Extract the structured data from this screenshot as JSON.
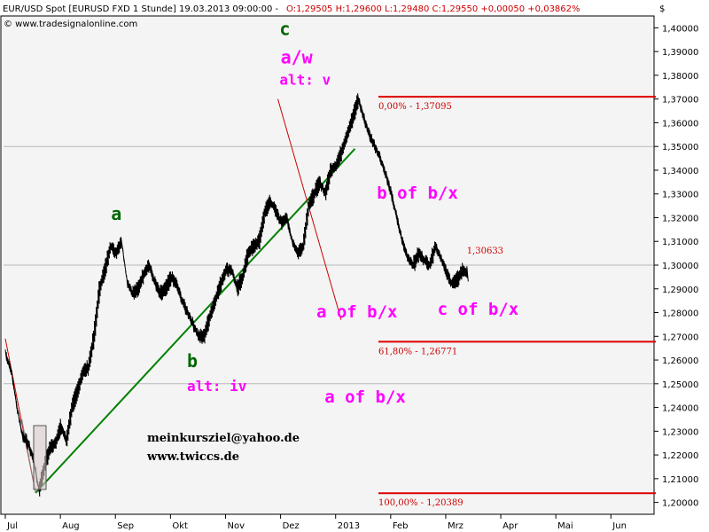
{
  "header": {
    "title": "EUR/USD Spot [EURUSD FXD  1 Stunde] 19.03.2013 09:00:00 -",
    "ohlc": "O:1,29505 H:1,29600 L:1,29480 C:1,29550 +0,00050 +0,03862%",
    "source": "© www.tradesignalonline.com",
    "currency": "$"
  },
  "chart_data": {
    "type": "line",
    "x_tick_labels": [
      "Jul",
      "Aug",
      "Sep",
      "Okt",
      "Nov",
      "Dez",
      "2013",
      "Feb",
      "Mrz",
      "Apr",
      "Mai",
      "Jun"
    ],
    "y_tick_labels": [
      "1,20000",
      "1,21000",
      "1,22000",
      "1,23000",
      "1,24000",
      "1,25000",
      "1,26000",
      "1,27000",
      "1,28000",
      "1,29000",
      "1,30000",
      "1,31000",
      "1,32000",
      "1,33000",
      "1,34000",
      "1,35000",
      "1,36000",
      "1,37000",
      "1,38000",
      "1,39000",
      "1,40000"
    ],
    "ylim": [
      1.195,
      1.405
    ],
    "y_ticks": [
      1.2,
      1.21,
      1.22,
      1.23,
      1.24,
      1.25,
      1.26,
      1.27,
      1.28,
      1.29,
      1.3,
      1.31,
      1.32,
      1.33,
      1.34,
      1.35,
      1.36,
      1.37,
      1.38,
      1.39,
      1.4
    ],
    "x_tick_month_index": [
      0,
      1,
      2,
      3,
      4,
      5,
      6,
      7,
      8,
      9,
      10,
      11
    ],
    "xlim_month_index": [
      0,
      11.8
    ],
    "grid_lines": [
      1.25,
      1.3,
      1.35
    ],
    "price": {
      "x": [
        0,
        0.1,
        0.2,
        0.3,
        0.4,
        0.5,
        0.6,
        0.7,
        0.8,
        0.9,
        1.0,
        1.1,
        1.2,
        1.3,
        1.4,
        1.5,
        1.6,
        1.7,
        1.8,
        1.9,
        2.0,
        2.1,
        2.2,
        2.3,
        2.4,
        2.5,
        2.6,
        2.7,
        2.8,
        2.9,
        3.0,
        3.1,
        3.2,
        3.3,
        3.4,
        3.5,
        3.6,
        3.7,
        3.8,
        3.9,
        4.0,
        4.1,
        4.2,
        4.3,
        4.4,
        4.5,
        4.6,
        4.7,
        4.8,
        4.9,
        5.0,
        5.1,
        5.2,
        5.3,
        5.4,
        5.5,
        5.6,
        5.7,
        5.8,
        5.9,
        6.0,
        6.1,
        6.2,
        6.3,
        6.4,
        6.5,
        6.6,
        6.7,
        6.8,
        6.9,
        7.0,
        7.1,
        7.2,
        7.3,
        7.4,
        7.5,
        7.6,
        7.7,
        7.8,
        7.9,
        8.0,
        8.1,
        8.2,
        8.3,
        8.4
      ],
      "y": [
        1.262,
        1.255,
        1.24,
        1.228,
        1.225,
        1.218,
        1.205,
        1.215,
        1.223,
        1.225,
        1.232,
        1.226,
        1.24,
        1.247,
        1.255,
        1.257,
        1.27,
        1.29,
        1.298,
        1.308,
        1.305,
        1.31,
        1.293,
        1.288,
        1.29,
        1.296,
        1.3,
        1.293,
        1.288,
        1.29,
        1.295,
        1.292,
        1.285,
        1.28,
        1.275,
        1.27,
        1.27,
        1.278,
        1.285,
        1.292,
        1.298,
        1.298,
        1.29,
        1.295,
        1.305,
        1.308,
        1.31,
        1.322,
        1.327,
        1.323,
        1.318,
        1.32,
        1.31,
        1.305,
        1.308,
        1.325,
        1.33,
        1.335,
        1.33,
        1.34,
        1.342,
        1.348,
        1.355,
        1.362,
        1.37,
        1.362,
        1.355,
        1.35,
        1.345,
        1.338,
        1.33,
        1.32,
        1.31,
        1.303,
        1.3,
        1.305,
        1.302,
        1.3,
        1.308,
        1.303,
        1.297,
        1.292,
        1.294,
        1.298,
        1.296
      ]
    },
    "fib_levels": [
      {
        "value": 1.37095,
        "label": "0,00% - 1,37095"
      },
      {
        "value": 1.26771,
        "label": "61,80% - 1,26771"
      },
      {
        "value": 1.20389,
        "label": "100,00% - 1,20389"
      }
    ],
    "point_label": {
      "x": 8.35,
      "y": 1.30633,
      "label": "1,30633"
    },
    "trendlines": [
      {
        "color": "#008000",
        "points": [
          [
            0.55,
            1.204
          ],
          [
            6.35,
            1.349
          ]
        ]
      },
      {
        "color": "#cc0000",
        "points": [
          [
            4.95,
            1.37
          ],
          [
            6.1,
            1.277
          ]
        ]
      },
      {
        "color": "#cc0000",
        "points": [
          [
            0.0,
            1.269
          ],
          [
            0.55,
            1.204
          ]
        ]
      },
      {
        "color": "#888888",
        "points": [
          [
            0.3,
            1.235
          ],
          [
            0.55,
            1.204
          ]
        ]
      }
    ],
    "wave_labels": [
      {
        "text": "c",
        "x": 4.98,
        "y": 1.397,
        "color": "#006600",
        "size": 20
      },
      {
        "text": "a/w",
        "x": 5.0,
        "y": 1.385,
        "color": "#ff00ff",
        "size": 20
      },
      {
        "text": "alt: v",
        "x": 4.98,
        "y": 1.376,
        "color": "#ff00ff",
        "size": 16
      },
      {
        "text": "a",
        "x": 1.92,
        "y": 1.319,
        "color": "#006600",
        "size": 20
      },
      {
        "text": "b of b/x",
        "x": 6.75,
        "y": 1.328,
        "color": "#ff00ff",
        "size": 19
      },
      {
        "text": "a of b/x",
        "x": 5.65,
        "y": 1.278,
        "color": "#ff00ff",
        "size": 19
      },
      {
        "text": "c of b/x",
        "x": 7.85,
        "y": 1.279,
        "color": "#ff00ff",
        "size": 19
      },
      {
        "text": "b",
        "x": 3.3,
        "y": 1.257,
        "color": "#006600",
        "size": 20
      },
      {
        "text": "alt: iv",
        "x": 3.3,
        "y": 1.247,
        "color": "#ff00ff",
        "size": 16
      },
      {
        "text": "a of b/x",
        "x": 5.8,
        "y": 1.242,
        "color": "#ff00ff",
        "size": 19
      }
    ],
    "watermark": [
      "meinkursziel@yahoo.de",
      "www.twiccs.de"
    ]
  }
}
